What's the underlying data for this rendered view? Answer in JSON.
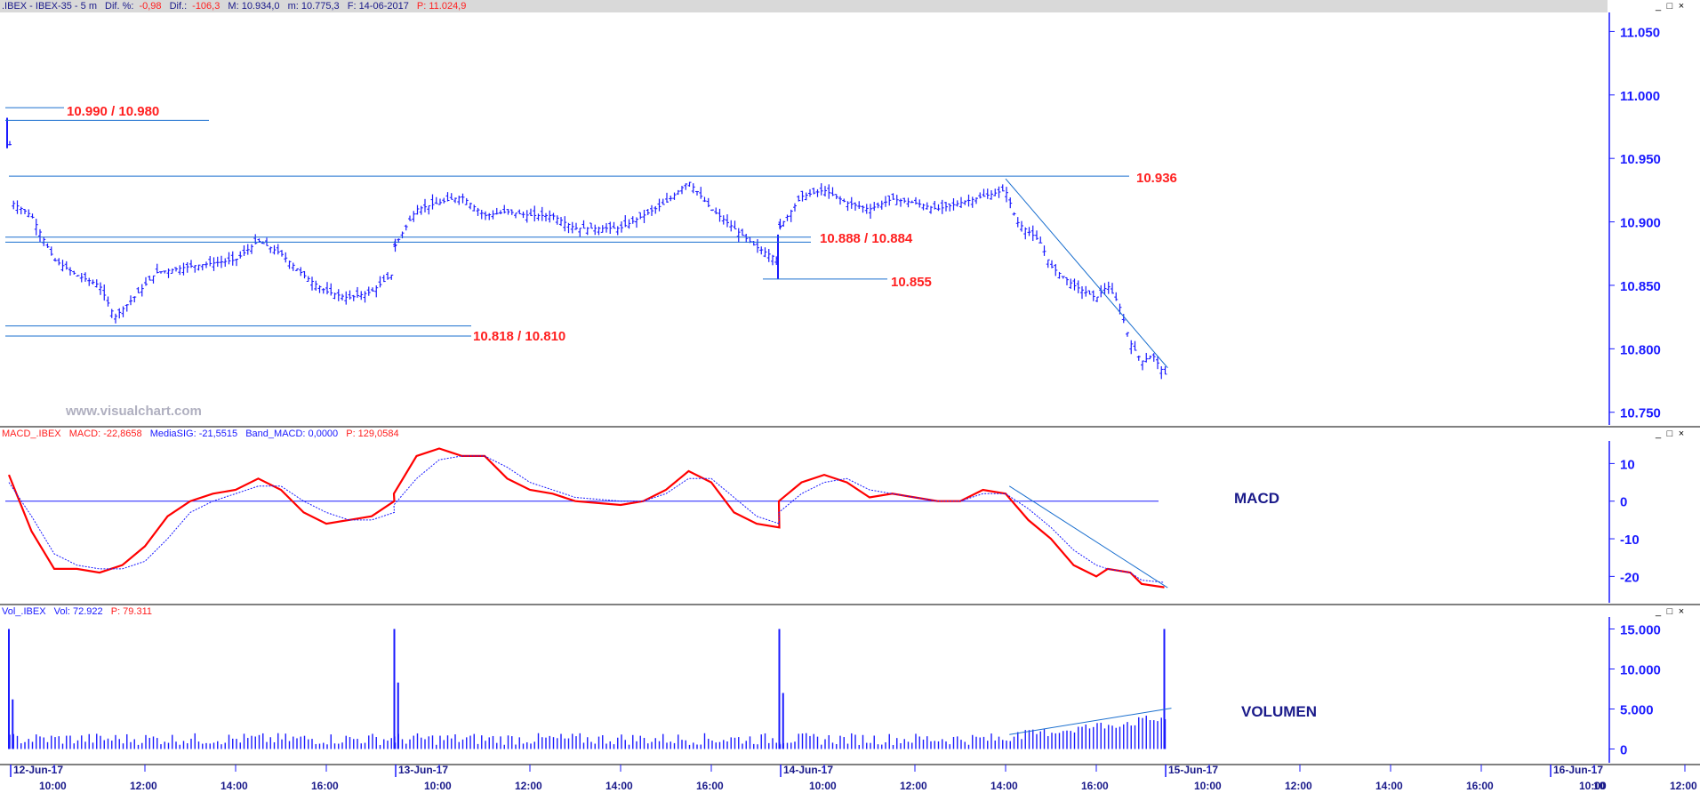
{
  "window": {
    "buttons": [
      "_",
      "□",
      "×"
    ]
  },
  "price_header": {
    "symbol": ".IBEX - IBEX-35 -  5 m",
    "dif_pct_label": "Dif. %:",
    "dif_pct": "-0,98",
    "dif_label": "Dif.:",
    "dif": "-106,3",
    "max": "M: 10.934,0",
    "min": "m: 10.775,3",
    "date": "F: 14-06-2017",
    "price": "P: 11.024,9"
  },
  "macd_header": {
    "name": "MACD_.IBEX",
    "macd": "MACD: -22,8658",
    "signal": "MediaSIG: -21,5515",
    "band": "Band_MACD: 0,0000",
    "price": "P: 129,0584"
  },
  "vol_header": {
    "name": "Vol_.IBEX",
    "vol": "Vol: 72.922",
    "price": "P: 79.311"
  },
  "watermark": "www.visualchart.com",
  "panel_labels": {
    "macd": "MACD",
    "volume": "VOLUMEN"
  },
  "colors": {
    "price_bars": "#1a1aff",
    "macd_line": "#ff0000",
    "signal_line": "#1a1aff",
    "volume_bars": "#1a1aff",
    "level_text": "#ff2020",
    "axis_text": "#1a1aff",
    "header_bg": "#d9d9d9"
  },
  "chart_data": [
    {
      "type": "ohlc",
      "panel": "price",
      "interval": "5 m",
      "ylim": [
        10740,
        11065
      ],
      "yticks": [
        10750,
        10800,
        10850,
        10900,
        10950,
        11000,
        11050
      ],
      "ytick_labels": [
        "10.750",
        "10.800",
        "10.850",
        "10.900",
        "10.950",
        "11.000",
        "11.050"
      ],
      "close_series_approx": [
        [
          "2017-06-12 09:00",
          10975
        ],
        [
          "2017-06-12 09:05",
          10915
        ],
        [
          "2017-06-12 09:30",
          10905
        ],
        [
          "2017-06-12 10:00",
          10870
        ],
        [
          "2017-06-12 10:30",
          10858
        ],
        [
          "2017-06-12 11:00",
          10850
        ],
        [
          "2017-06-12 11:20",
          10825
        ],
        [
          "2017-06-12 11:45",
          10840
        ],
        [
          "2017-06-12 12:15",
          10860
        ],
        [
          "2017-06-12 13:00",
          10865
        ],
        [
          "2017-06-12 14:00",
          10870
        ],
        [
          "2017-06-12 14:30",
          10885
        ],
        [
          "2017-06-12 15:00",
          10875
        ],
        [
          "2017-06-12 15:30",
          10858
        ],
        [
          "2017-06-12 16:00",
          10845
        ],
        [
          "2017-06-12 16:30",
          10840
        ],
        [
          "2017-06-12 17:00",
          10845
        ],
        [
          "2017-06-12 17:30",
          10860
        ],
        [
          "2017-06-13 09:00",
          10880
        ],
        [
          "2017-06-13 09:30",
          10910
        ],
        [
          "2017-06-13 10:00",
          10915
        ],
        [
          "2017-06-13 10:30",
          10920
        ],
        [
          "2017-06-13 11:00",
          10905
        ],
        [
          "2017-06-13 11:30",
          10908
        ],
        [
          "2017-06-13 12:00",
          10905
        ],
        [
          "2017-06-13 12:30",
          10905
        ],
        [
          "2017-06-13 13:00",
          10895
        ],
        [
          "2017-06-13 14:00",
          10895
        ],
        [
          "2017-06-13 14:30",
          10905
        ],
        [
          "2017-06-13 15:00",
          10915
        ],
        [
          "2017-06-13 15:30",
          10932
        ],
        [
          "2017-06-13 16:00",
          10910
        ],
        [
          "2017-06-13 16:30",
          10895
        ],
        [
          "2017-06-13 17:00",
          10880
        ],
        [
          "2017-06-13 17:30",
          10870
        ],
        [
          "2017-06-14 09:00",
          10895
        ],
        [
          "2017-06-14 09:30",
          10920
        ],
        [
          "2017-06-14 10:00",
          10925
        ],
        [
          "2017-06-14 10:30",
          10915
        ],
        [
          "2017-06-14 11:00",
          10910
        ],
        [
          "2017-06-14 11:30",
          10918
        ],
        [
          "2017-06-14 12:00",
          10915
        ],
        [
          "2017-06-14 12:30",
          10910
        ],
        [
          "2017-06-14 13:00",
          10915
        ],
        [
          "2017-06-14 13:30",
          10920
        ],
        [
          "2017-06-14 14:00",
          10925
        ],
        [
          "2017-06-14 14:15",
          10900
        ],
        [
          "2017-06-14 14:45",
          10885
        ],
        [
          "2017-06-14 15:00",
          10865
        ],
        [
          "2017-06-14 15:30",
          10850
        ],
        [
          "2017-06-14 16:00",
          10840
        ],
        [
          "2017-06-14 16:15",
          10850
        ],
        [
          "2017-06-14 16:30",
          10835
        ],
        [
          "2017-06-14 16:45",
          10805
        ],
        [
          "2017-06-14 17:00",
          10790
        ],
        [
          "2017-06-14 17:15",
          10795
        ],
        [
          "2017-06-14 17:30",
          10780
        ]
      ],
      "levels": [
        {
          "label": "10.990 / 10.980",
          "values": [
            10990,
            10980
          ]
        },
        {
          "label": "10.936",
          "values": [
            10936
          ]
        },
        {
          "label": "10.888 / 10.884",
          "values": [
            10888,
            10884
          ]
        },
        {
          "label": "10.855",
          "values": [
            10855
          ]
        },
        {
          "label": "10.818 / 10.810",
          "values": [
            10818,
            10810
          ]
        }
      ],
      "trendline": {
        "from": [
          "2017-06-14 14:00",
          10934
        ],
        "to": [
          "2017-06-15 09:05",
          10785
        ]
      }
    },
    {
      "type": "line",
      "panel": "macd",
      "title": "MACD",
      "ylim": [
        -27,
        16
      ],
      "yticks": [
        -20,
        -10,
        0,
        10
      ],
      "ytick_labels": [
        "-20",
        "-10",
        "0",
        "10"
      ],
      "series": [
        {
          "name": "MACD",
          "values": [
            [
              "2017-06-12 09:00",
              7
            ],
            [
              "2017-06-12 09:30",
              -8
            ],
            [
              "2017-06-12 10:00",
              -18
            ],
            [
              "2017-06-12 10:30",
              -18
            ],
            [
              "2017-06-12 11:00",
              -19
            ],
            [
              "2017-06-12 11:30",
              -17
            ],
            [
              "2017-06-12 12:00",
              -12
            ],
            [
              "2017-06-12 12:30",
              -4
            ],
            [
              "2017-06-12 13:00",
              0
            ],
            [
              "2017-06-12 13:30",
              2
            ],
            [
              "2017-06-12 14:00",
              3
            ],
            [
              "2017-06-12 14:30",
              6
            ],
            [
              "2017-06-12 15:00",
              3
            ],
            [
              "2017-06-12 15:30",
              -3
            ],
            [
              "2017-06-12 16:00",
              -6
            ],
            [
              "2017-06-12 16:30",
              -5
            ],
            [
              "2017-06-12 17:00",
              -4
            ],
            [
              "2017-06-12 17:30",
              0
            ],
            [
              "2017-06-13 09:00",
              2
            ],
            [
              "2017-06-13 09:30",
              12
            ],
            [
              "2017-06-13 10:00",
              14
            ],
            [
              "2017-06-13 10:30",
              12
            ],
            [
              "2017-06-13 11:00",
              12
            ],
            [
              "2017-06-13 11:30",
              6
            ],
            [
              "2017-06-13 12:00",
              3
            ],
            [
              "2017-06-13 12:30",
              2
            ],
            [
              "2017-06-13 13:00",
              0
            ],
            [
              "2017-06-13 14:00",
              -1
            ],
            [
              "2017-06-13 14:30",
              0
            ],
            [
              "2017-06-13 15:00",
              3
            ],
            [
              "2017-06-13 15:30",
              8
            ],
            [
              "2017-06-13 16:00",
              5
            ],
            [
              "2017-06-13 16:30",
              -3
            ],
            [
              "2017-06-13 17:00",
              -6
            ],
            [
              "2017-06-13 17:30",
              -7
            ],
            [
              "2017-06-14 09:00",
              0
            ],
            [
              "2017-06-14 09:30",
              5
            ],
            [
              "2017-06-14 10:00",
              7
            ],
            [
              "2017-06-14 10:30",
              5
            ],
            [
              "2017-06-14 11:00",
              1
            ],
            [
              "2017-06-14 11:30",
              2
            ],
            [
              "2017-06-14 12:00",
              1
            ],
            [
              "2017-06-14 12:30",
              0
            ],
            [
              "2017-06-14 13:00",
              0
            ],
            [
              "2017-06-14 13:30",
              3
            ],
            [
              "2017-06-14 14:00",
              2
            ],
            [
              "2017-06-14 14:30",
              -5
            ],
            [
              "2017-06-14 15:00",
              -10
            ],
            [
              "2017-06-14 15:30",
              -17
            ],
            [
              "2017-06-14 16:00",
              -20
            ],
            [
              "2017-06-14 16:15",
              -18
            ],
            [
              "2017-06-14 16:45",
              -19
            ],
            [
              "2017-06-14 17:00",
              -22
            ],
            [
              "2017-06-14 17:30",
              -22.9
            ]
          ]
        },
        {
          "name": "MediaSIG",
          "values": [
            [
              "2017-06-12 09:00",
              5
            ],
            [
              "2017-06-12 09:30",
              -4
            ],
            [
              "2017-06-12 10:00",
              -14
            ],
            [
              "2017-06-12 10:30",
              -17
            ],
            [
              "2017-06-12 11:00",
              -18
            ],
            [
              "2017-06-12 11:30",
              -18
            ],
            [
              "2017-06-12 12:00",
              -16
            ],
            [
              "2017-06-12 12:30",
              -10
            ],
            [
              "2017-06-12 13:00",
              -3
            ],
            [
              "2017-06-12 13:30",
              0
            ],
            [
              "2017-06-12 14:00",
              2
            ],
            [
              "2017-06-12 14:30",
              4
            ],
            [
              "2017-06-12 15:00",
              4
            ],
            [
              "2017-06-12 15:30",
              0
            ],
            [
              "2017-06-12 16:00",
              -3
            ],
            [
              "2017-06-12 16:30",
              -5
            ],
            [
              "2017-06-12 17:00",
              -5
            ],
            [
              "2017-06-12 17:30",
              -3
            ],
            [
              "2017-06-13 09:00",
              -1
            ],
            [
              "2017-06-13 09:30",
              6
            ],
            [
              "2017-06-13 10:00",
              11
            ],
            [
              "2017-06-13 10:30",
              12
            ],
            [
              "2017-06-13 11:00",
              12
            ],
            [
              "2017-06-13 11:30",
              9
            ],
            [
              "2017-06-13 12:00",
              5
            ],
            [
              "2017-06-13 12:30",
              3
            ],
            [
              "2017-06-13 13:00",
              1
            ],
            [
              "2017-06-13 14:00",
              0
            ],
            [
              "2017-06-13 14:30",
              0
            ],
            [
              "2017-06-13 15:00",
              2
            ],
            [
              "2017-06-13 15:30",
              6
            ],
            [
              "2017-06-13 16:00",
              6
            ],
            [
              "2017-06-13 16:30",
              1
            ],
            [
              "2017-06-13 17:00",
              -4
            ],
            [
              "2017-06-13 17:30",
              -6
            ],
            [
              "2017-06-14 09:00",
              -3
            ],
            [
              "2017-06-14 09:30",
              2
            ],
            [
              "2017-06-14 10:00",
              5
            ],
            [
              "2017-06-14 10:30",
              6
            ],
            [
              "2017-06-14 11:00",
              3
            ],
            [
              "2017-06-14 11:30",
              2
            ],
            [
              "2017-06-14 12:00",
              1
            ],
            [
              "2017-06-14 12:30",
              0
            ],
            [
              "2017-06-14 13:00",
              0
            ],
            [
              "2017-06-14 13:30",
              2
            ],
            [
              "2017-06-14 14:00",
              2
            ],
            [
              "2017-06-14 14:30",
              -2
            ],
            [
              "2017-06-14 15:00",
              -7
            ],
            [
              "2017-06-14 15:30",
              -13
            ],
            [
              "2017-06-14 16:00",
              -17
            ],
            [
              "2017-06-14 16:15",
              -18
            ],
            [
              "2017-06-14 16:45",
              -19
            ],
            [
              "2017-06-14 17:00",
              -21
            ],
            [
              "2017-06-14 17:30",
              -21.6
            ]
          ]
        }
      ],
      "zero_line": 0,
      "trendline": {
        "from": [
          "2017-06-14 14:05",
          4
        ],
        "to": [
          "2017-06-15 09:05",
          -23
        ]
      }
    },
    {
      "type": "bar",
      "panel": "volume",
      "title": "VOLUMEN",
      "ylim": [
        -1500,
        16500
      ],
      "yticks": [
        0,
        5000,
        10000,
        15000
      ],
      "ytick_labels": [
        "0",
        "5.000",
        "10.000",
        "15.000"
      ],
      "spikes": [
        [
          "2017-06-12 09:00",
          15000
        ],
        [
          "2017-06-12 09:05",
          6200
        ],
        [
          "2017-06-12 17:30",
          15000
        ],
        [
          "2017-06-12 17:35",
          8300
        ],
        [
          "2017-06-13 17:30",
          15000
        ],
        [
          "2017-06-13 17:35",
          7000
        ],
        [
          "2017-06-14 17:30",
          15000
        ]
      ],
      "typical_bar_range": [
        500,
        2000
      ],
      "late_session_rise": {
        "from": [
          "2017-06-14 14:00",
          1500
        ],
        "to": [
          "2017-06-14 17:25",
          3800
        ]
      },
      "trendline": {
        "from": [
          "2017-06-14 14:05",
          1800
        ],
        "to": [
          "2017-06-15 09:10",
          5100
        ]
      }
    }
  ],
  "x_axis": {
    "date_labels": [
      {
        "date": "2017-06-12",
        "label": "12-Jun-17"
      },
      {
        "date": "2017-06-13",
        "label": "13-Jun-17"
      },
      {
        "date": "2017-06-14",
        "label": "14-Jun-17"
      },
      {
        "date": "2017-06-15",
        "label": "15-Jun-17"
      },
      {
        "date": "2017-06-16",
        "label": "16-Jun-17"
      }
    ],
    "time_labels": [
      "10:00",
      "12:00",
      "14:00",
      "16:00"
    ],
    "session": "09:00-17:35",
    "last_label": "10"
  }
}
